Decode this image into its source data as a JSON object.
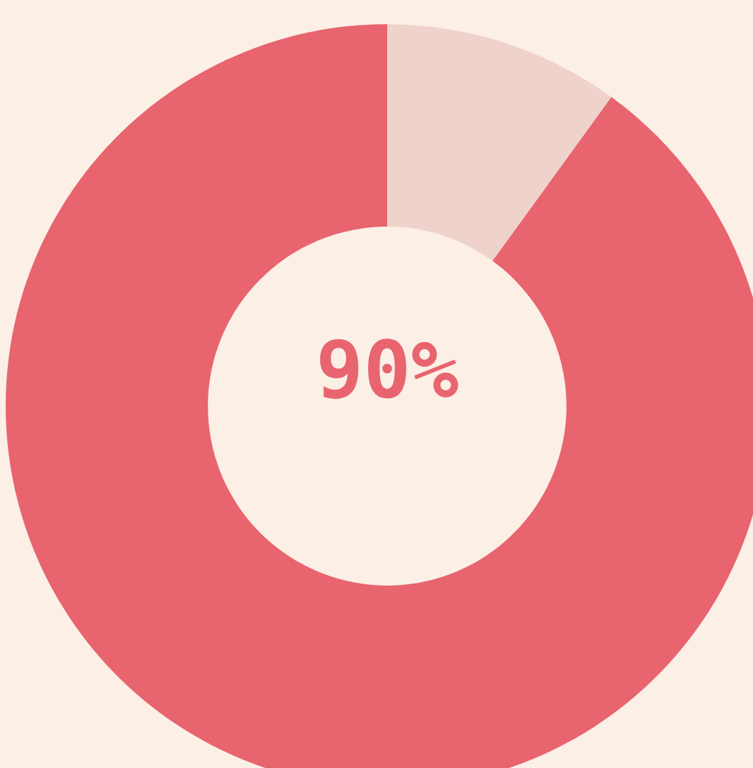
{
  "chart_data": {
    "type": "donut",
    "categories": [
      null,
      null
    ],
    "values": [
      10,
      90
    ],
    "colors": [
      "#f0d2cc",
      "#e8646e"
    ],
    "annotations": [
      "90%"
    ]
  }
}
